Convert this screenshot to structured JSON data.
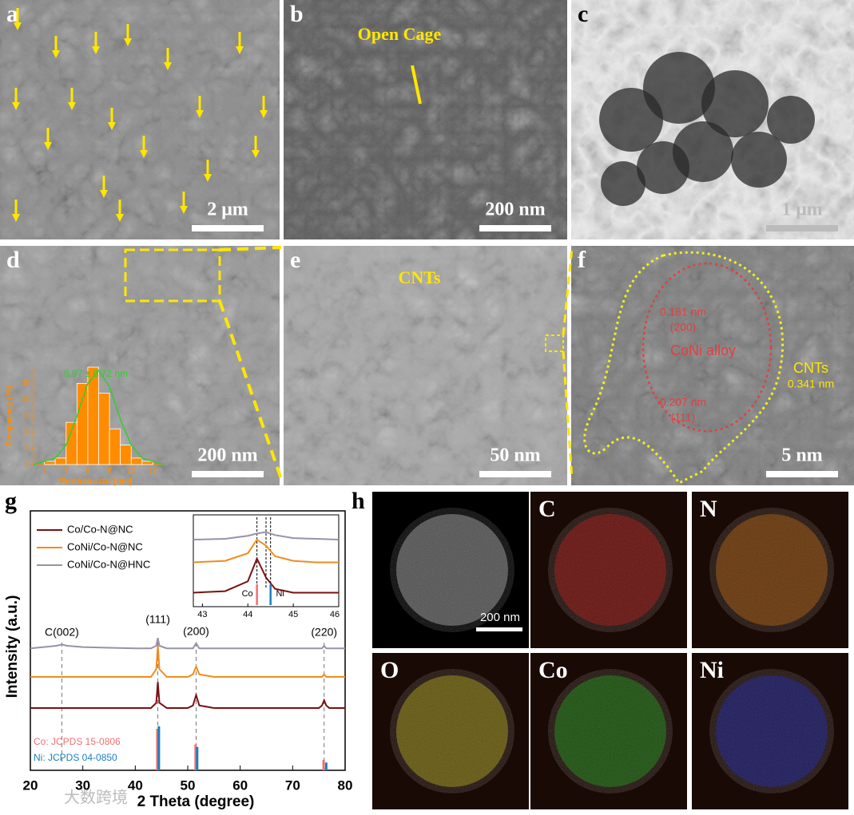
{
  "panels": {
    "a": {
      "label": "a",
      "scale_bar": "2 μm"
    },
    "b": {
      "label": "b",
      "annotation": "Open Cage",
      "scale_bar": "200 nm"
    },
    "c": {
      "label": "c",
      "scale_bar": "1 μm"
    },
    "d": {
      "label": "d",
      "scale_bar": "200 nm",
      "chart_data": {
        "type": "histogram",
        "annotation": "6.97 ± 0.72 nm",
        "xlabel": "Particle size (nm)",
        "ylabel": "Frequency (%)",
        "bins": [
          2,
          3,
          4,
          5,
          6,
          7,
          8,
          9,
          10,
          11,
          12
        ],
        "values": [
          1,
          2,
          13,
          25,
          30,
          22,
          11,
          6,
          2,
          1
        ],
        "color": "#ff8c00",
        "fit": {
          "color": "#33cc33",
          "x": [
            1,
            3,
            4,
            5,
            6,
            7,
            8,
            9,
            10,
            11,
            13
          ],
          "values": [
            0,
            2,
            6,
            15,
            25,
            29,
            24,
            14,
            6,
            2,
            0
          ]
        },
        "xlim": [
          1,
          13
        ],
        "ylim": [
          0,
          30
        ],
        "xticks": [
          2,
          4,
          6,
          8,
          10,
          12
        ],
        "yticks": [
          0,
          5,
          10,
          15,
          20,
          25
        ]
      }
    },
    "e": {
      "label": "e",
      "annotation": "CNTs",
      "scale_bar": "50 nm"
    },
    "f": {
      "label": "f",
      "annotations": [
        "0.181 nm",
        "(200)",
        "CoNi  alloy",
        "0.207 nm",
        "(111)",
        "CNTs",
        "0.341 nm"
      ],
      "scale_bar": "5 nm"
    },
    "g": {
      "label": "g",
      "chart_data": {
        "type": "line",
        "xlabel": "2 Theta (degree)",
        "ylabel": "Intensity (a.u.)",
        "xlim": [
          20,
          80
        ],
        "xticks": [
          20,
          30,
          40,
          50,
          60,
          70,
          80
        ],
        "ylim": [
          0,
          100
        ],
        "x": [
          20,
          25,
          26,
          27,
          30,
          40,
          43,
          44,
          44.3,
          44.6,
          46,
          50,
          51,
          51.6,
          52.2,
          55,
          70,
          75,
          75.6,
          76,
          76.4,
          77,
          80
        ],
        "series": [
          {
            "name": "Co/Co-N@NC",
            "color": "#7b1010",
            "values": [
              24,
              24,
              24,
              24,
              24,
              24,
              24,
              26,
              34,
              26,
              24,
              24,
              25,
              29,
              25,
              24,
              24,
              24,
              25,
              27,
              25,
              24,
              24
            ]
          },
          {
            "name": "CoNi/Co-N@NC",
            "color": "#f08c1e",
            "values": [
              36,
              36,
              36,
              36,
              36,
              36,
              36,
              39,
              48,
              39,
              36,
              36,
              37,
              40,
              37,
              36,
              36,
              36,
              36,
              37,
              36,
              36,
              36
            ]
          },
          {
            "name": "CoNi/Co-N@HNC",
            "color": "#9a90aa",
            "values": [
              47,
              48,
              48.5,
              48,
              47.5,
              47,
              47,
              48,
              51,
              48,
              47,
              47,
              47,
              49,
              47,
              47,
              47,
              47,
              47,
              48,
              47,
              47,
              47
            ]
          }
        ],
        "peak_labels": [
          {
            "text": "C(002)",
            "x": 26
          },
          {
            "text": "(111)",
            "x": 44.3
          },
          {
            "text": "(200)",
            "x": 51.6
          },
          {
            "text": "(220)",
            "x": 76
          }
        ],
        "references": [
          {
            "name": "Co: JCPDS 15-0806",
            "color": "#f07070",
            "x": [
              44.2,
              51.5,
              75.9
            ],
            "values": [
              16,
              10,
              4
            ]
          },
          {
            "name": "Ni: JCPDS 04-0850",
            "color": "#1a7fc0",
            "x": [
              44.5,
              51.8,
              76.4
            ],
            "values": [
              17,
              9,
              3
            ]
          }
        ],
        "inset": {
          "xlim": [
            42.8,
            46
          ],
          "xticks": [
            43,
            44,
            45,
            46
          ],
          "ylim": [
            0,
            100
          ],
          "x": [
            42.8,
            43.5,
            44,
            44.2,
            44.4,
            44.6,
            45,
            45.5,
            46
          ],
          "series": [
            [
              10,
              12,
              25,
              55,
              30,
              15,
              10,
              10,
              10
            ],
            [
              50,
              52,
              62,
              80,
              72,
              58,
              52,
              50,
              50
            ],
            [
              80,
              81,
              85,
              88,
              90,
              86,
              82,
              81,
              80
            ]
          ],
          "markers": [
            {
              "text": "Co",
              "x": 44.2
            },
            {
              "text": "Ni",
              "x": 44.5
            }
          ],
          "dashed": [
            44.2,
            44.4,
            44.5
          ]
        }
      }
    },
    "h": {
      "label": "h",
      "tiles": [
        {
          "scale_bar": "200 nm"
        },
        {
          "label": "C"
        },
        {
          "label": "N"
        },
        {
          "label": "O"
        },
        {
          "label": "Co"
        },
        {
          "label": "Ni"
        }
      ]
    }
  },
  "watermark": "大数跨境"
}
